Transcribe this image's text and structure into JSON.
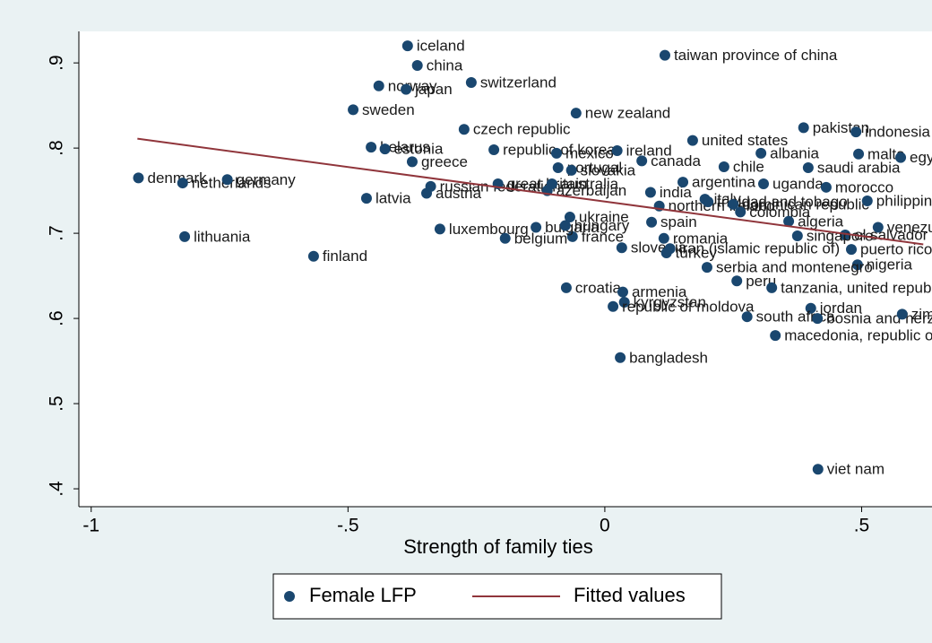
{
  "chart_data": {
    "type": "scatter",
    "xlabel": "Strength of family ties",
    "xlim": [
      -1.024,
      0.637
    ],
    "ylim": [
      0.379,
      0.937
    ],
    "xticks": [
      -1,
      {
        "value": -0.5,
        "label": "-.5"
      },
      0,
      {
        "value": 0.5,
        "label": ".5"
      }
    ],
    "yticks": [
      {
        "value": 0.4,
        "label": ".4"
      },
      {
        "value": 0.5,
        "label": ".5"
      },
      {
        "value": 0.6,
        "label": ".6"
      },
      {
        "value": 0.7,
        "label": ".7"
      },
      {
        "value": 0.8,
        "label": ".8"
      },
      {
        "value": 0.9,
        "label": ".9"
      }
    ],
    "series": [
      {
        "name": "Female LFP",
        "color": "#1a476f",
        "labels": [
          "iceland",
          "china",
          "norway",
          "japan",
          "switzerland",
          "sweden",
          "czech republic",
          "new zealand",
          "taiwan province of china",
          "belarus",
          "estonia",
          "greece",
          "republic of korea",
          "mexico",
          "ireland",
          "canada",
          "united states",
          "chile",
          "albania",
          "pakistan",
          "indonesia",
          "malta",
          "egypt",
          "saudi arabia",
          "portugal",
          "slovakia",
          "denmark",
          "netherlands",
          "germany",
          "latvia",
          "austria",
          "russian federation",
          "great britain",
          "australia",
          "azerbaijan",
          "lithuania",
          "finland",
          "luxembourg",
          "belgium",
          "france",
          "bulgaria",
          "hungary",
          "ukraine",
          "india",
          "italy",
          "argentina",
          "northern ireland",
          "trinidad and tobago",
          "dominican republic",
          "colombia",
          "uganda",
          "morocco",
          "philippines",
          "algeria",
          "venezuela",
          "el salvador",
          "singapore",
          "spain",
          "slovenia",
          "romania",
          "iran (islamic republic of)",
          "turkey",
          "puerto rico",
          "nigeria",
          "serbia and montenegro",
          "peru",
          "tanzania, united republic of",
          "croatia",
          "armenia",
          "kyrgyzstan",
          "republic of moldova",
          "jordan",
          "south africa",
          "bosnia and herzegovina",
          "zimbabwe",
          "macedonia, republic of",
          "bangladesh",
          "viet nam"
        ],
        "x": [
          -0.384,
          -0.365,
          -0.44,
          -0.387,
          -0.26,
          -0.49,
          -0.274,
          -0.056,
          0.117,
          -0.455,
          -0.428,
          -0.375,
          -0.216,
          -0.094,
          0.024,
          0.072,
          0.171,
          0.232,
          0.304,
          0.387,
          0.489,
          0.494,
          0.576,
          0.396,
          -0.091,
          -0.065,
          -0.908,
          -0.822,
          -0.735,
          -0.464,
          -0.347,
          -0.339,
          -0.208,
          -0.103,
          -0.112,
          -0.818,
          -0.567,
          -0.321,
          -0.194,
          -0.063,
          -0.134,
          -0.077,
          -0.068,
          0.089,
          0.195,
          0.152,
          0.106,
          0.201,
          0.25,
          0.264,
          0.309,
          0.431,
          0.511,
          0.358,
          0.532,
          0.468,
          0.375,
          0.091,
          0.033,
          0.115,
          0.127,
          0.12,
          0.48,
          0.492,
          0.199,
          0.257,
          0.325,
          -0.075,
          0.035,
          0.038,
          0.016,
          0.401,
          0.277,
          0.414,
          0.579,
          0.332,
          0.03,
          0.415
        ],
        "values": [
          0.92,
          0.897,
          0.873,
          0.869,
          0.877,
          0.845,
          0.822,
          0.841,
          0.909,
          0.801,
          0.799,
          0.784,
          0.798,
          0.794,
          0.797,
          0.785,
          0.809,
          0.778,
          0.794,
          0.824,
          0.819,
          0.793,
          0.789,
          0.777,
          0.777,
          0.774,
          0.765,
          0.759,
          0.763,
          0.741,
          0.747,
          0.755,
          0.758,
          0.758,
          0.75,
          0.696,
          0.673,
          0.705,
          0.694,
          0.696,
          0.707,
          0.709,
          0.719,
          0.748,
          0.74,
          0.76,
          0.732,
          0.737,
          0.734,
          0.725,
          0.758,
          0.754,
          0.738,
          0.714,
          0.707,
          0.698,
          0.697,
          0.713,
          0.683,
          0.694,
          0.682,
          0.677,
          0.681,
          0.663,
          0.66,
          0.644,
          0.636,
          0.636,
          0.631,
          0.619,
          0.614,
          0.612,
          0.602,
          0.6,
          0.605,
          0.58,
          0.554,
          0.423
        ]
      },
      {
        "name": "Fitted values",
        "type": "line",
        "color": "#90353b",
        "x": [
          -0.91,
          0.62
        ],
        "values": [
          0.811,
          0.687
        ]
      }
    ]
  }
}
